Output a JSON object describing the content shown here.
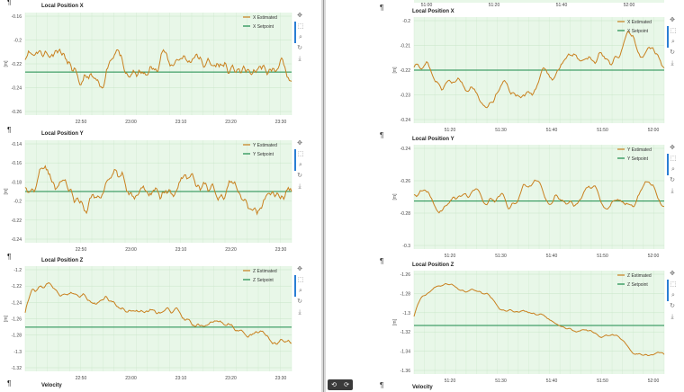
{
  "colors": {
    "estimated": "#c9801f",
    "setpoint": "#1a8a4a",
    "plot_bg": "#e8f7e8",
    "grid": "#c8e6c8"
  },
  "icons": [
    "pan-icon",
    "box-zoom-icon",
    "wheel-zoom-icon",
    "reset-icon",
    "save-icon"
  ],
  "left": {
    "panels": [
      {
        "title": "Local Position X",
        "legend": [
          "X Estimated",
          "X Setpoint"
        ],
        "ylabel": "[m]",
        "yticks": [
          "-0.16",
          "-0.2",
          "-0.22",
          "-0.24",
          "-0.26"
        ],
        "xticks": [
          "22:50",
          "23:00",
          "23:10",
          "23:20",
          "23:30"
        ]
      },
      {
        "title": "Local Position Y",
        "legend": [
          "Y Estimated",
          "Y Setpoint"
        ],
        "ylabel": "[m]",
        "yticks": [
          "-0.14",
          "-0.16",
          "-0.18",
          "-0.2",
          "-0.22",
          "-0.24"
        ],
        "xticks": [
          "22:50",
          "23:00",
          "23:10",
          "23:20",
          "23:30"
        ]
      },
      {
        "title": "Local Position Z",
        "legend": [
          "Z Estimated",
          "Z Setpoint"
        ],
        "ylabel": "[m]",
        "yticks": [
          "-1.2",
          "-1.22",
          "-1.24",
          "-1.26",
          "-1.28",
          "-1.3",
          "-1.32"
        ],
        "xticks": [
          "22:50",
          "23:00",
          "23:10",
          "23:20",
          "23:30"
        ]
      }
    ],
    "bottom_title": "Velocity"
  },
  "right": {
    "top_axis_ticks": [
      "51:00",
      "51:20",
      "51:40",
      "52:00"
    ],
    "panels": [
      {
        "title": "Local Position X",
        "legend": [
          "X Estimated",
          "X Setpoint"
        ],
        "ylabel": "[m]",
        "yticks": [
          "-0.2",
          "-0.21",
          "-0.22",
          "-0.23",
          "-0.24"
        ],
        "xticks": [
          "51:20",
          "51:30",
          "51:40",
          "51:50",
          "52:00"
        ]
      },
      {
        "title": "Local Position Y",
        "legend": [
          "Y Estimated",
          "Y Setpoint"
        ],
        "ylabel": "[m]",
        "yticks": [
          "-0.24",
          "-0.26",
          "-0.28",
          "-0.3"
        ],
        "xticks": [
          "51:20",
          "51:30",
          "51:40",
          "51:50",
          "52:00"
        ]
      },
      {
        "title": "Local Position Z",
        "legend": [
          "Z Estimated",
          "Z Setpoint"
        ],
        "ylabel": "[m]",
        "yticks": [
          "-1.26",
          "-1.28",
          "-1.3",
          "-1.32",
          "-1.34",
          "-1.36"
        ],
        "xticks": [
          "51:20",
          "51:30",
          "51:40",
          "51:50",
          "52:00"
        ]
      }
    ],
    "bottom_title": "Velocity"
  },
  "pilcrow": "¶",
  "controls": {
    "undo": "⟲",
    "redo": "⟳"
  }
}
